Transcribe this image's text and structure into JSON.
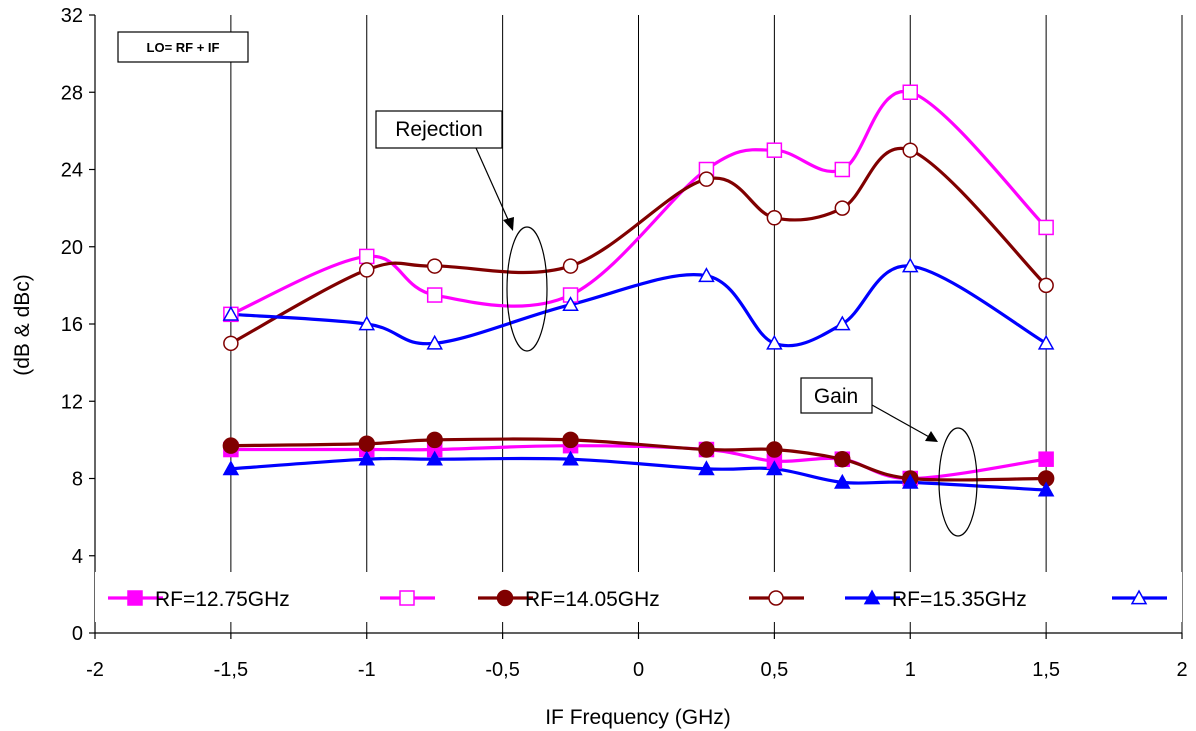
{
  "chart_data": {
    "type": "line",
    "title": "",
    "xlabel": "IF Frequency (GHz)",
    "ylabel": "(dB & dBc)",
    "xlim": [
      -2,
      2
    ],
    "ylim": [
      0,
      32
    ],
    "x_ticks": [
      -2,
      -1.5,
      -1,
      -0.5,
      0,
      0.5,
      1,
      1.5,
      2
    ],
    "x_tick_labels": [
      "-2",
      "-1,5",
      "-1",
      "-0,5",
      "0",
      "0,5",
      "1",
      "1,5",
      "2"
    ],
    "y_ticks": [
      0,
      4,
      8,
      12,
      16,
      20,
      24,
      28,
      32
    ],
    "y_tick_labels": [
      "0",
      "4",
      "8",
      "12",
      "16",
      "20",
      "24",
      "28",
      "32"
    ],
    "grid": "vertical",
    "legend_position": "bottom",
    "x": [
      -1.5,
      -1,
      -0.75,
      -0.25,
      0.25,
      0.5,
      0.75,
      1,
      1.5
    ],
    "series": [
      {
        "name": "RF=12.75GHz",
        "group": "gain",
        "color": "#ff00ff",
        "marker": "square-filled",
        "values": [
          9.5,
          9.5,
          9.5,
          9.7,
          9.5,
          8.9,
          9.0,
          8.0,
          9.0
        ]
      },
      {
        "name": "",
        "group": "rejection",
        "color": "#ff00ff",
        "marker": "square-open",
        "values": [
          16.5,
          19.5,
          17.5,
          17.5,
          24.0,
          25.0,
          24.0,
          28.0,
          21.0
        ]
      },
      {
        "name": "RF=14.05GHz",
        "group": "gain",
        "color": "#800000",
        "marker": "circle-filled",
        "values": [
          9.7,
          9.8,
          10.0,
          10.0,
          9.5,
          9.5,
          9.0,
          8.0,
          8.0
        ]
      },
      {
        "name": "",
        "group": "rejection",
        "color": "#800000",
        "marker": "circle-open",
        "values": [
          15.0,
          18.8,
          19.0,
          19.0,
          23.5,
          21.5,
          22.0,
          25.0,
          18.0
        ]
      },
      {
        "name": "RF=15.35GHz",
        "group": "gain",
        "color": "#0000ff",
        "marker": "triangle-filled",
        "values": [
          8.5,
          9.0,
          9.0,
          9.0,
          8.5,
          8.5,
          7.8,
          7.8,
          7.4
        ]
      },
      {
        "name": "",
        "group": "rejection",
        "color": "#0000ff",
        "marker": "triangle-open",
        "values": [
          16.5,
          16.0,
          15.0,
          17.0,
          18.5,
          15.0,
          16.0,
          19.0,
          15.0
        ]
      }
    ],
    "annotations": {
      "lo_box": "LO= RF + IF",
      "rejection_label": "Rejection",
      "gain_label": "Gain"
    }
  }
}
